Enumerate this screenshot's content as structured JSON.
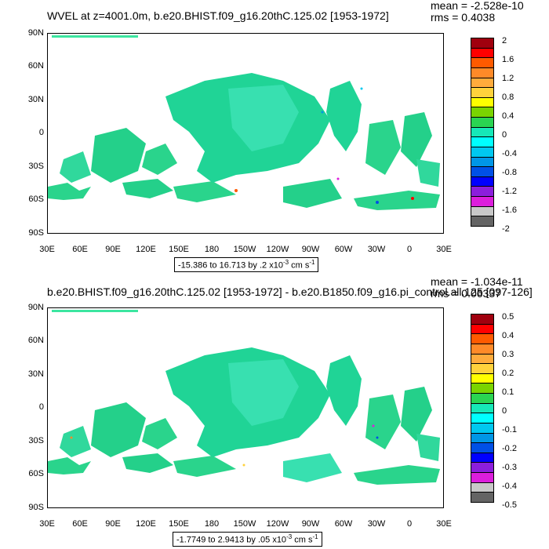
{
  "panels": [
    {
      "title": "WVEL at z=4001.0m, b.e20.BHIST.f09_g16.20thC.125.02 [1953-1972]",
      "mean": "mean = -2.528e-10",
      "rms": "rms = 0.4038",
      "range_prefix": "-15.386 to 16.713 by .2 x10",
      "range_exp": "-3",
      "range_unit": " cm s",
      "range_unit_exp": "-1",
      "colorbar_labels": [
        "2",
        "1.6",
        "1.2",
        "0.8",
        "0.4",
        "0",
        "-0.4",
        "-0.8",
        "-1.2",
        "-1.6",
        "-2"
      ]
    },
    {
      "title": "b.e20.BHIST.f09_g16.20thC.125.02 [1953-1972] - b.e20.B1850.f09_g16.pi_control.all.125 [097-126]",
      "mean": "mean = -1.034e-11",
      "rms": "rms = 0.06337",
      "range_prefix": "-1.7749 to 2.9413 by .05 x10",
      "range_exp": "-3",
      "range_unit": " cm s",
      "range_unit_exp": "-1",
      "colorbar_labels": [
        "0.5",
        "0.4",
        "0.3",
        "0.2",
        "0.1",
        "0",
        "-0.1",
        "-0.2",
        "-0.3",
        "-0.4",
        "-0.5"
      ]
    }
  ],
  "lat_labels": [
    "90N",
    "60N",
    "30N",
    "0",
    "30S",
    "60S",
    "90S"
  ],
  "lon_labels": [
    "30E",
    "60E",
    "90E",
    "120E",
    "150E",
    "180",
    "150W",
    "120W",
    "90W",
    "60W",
    "30W",
    "0",
    "30E"
  ],
  "colorbar_colors": [
    "#a0000e",
    "#ff0000",
    "#ff5a00",
    "#ff8a28",
    "#ffab3c",
    "#ffd23c",
    "#ffff00",
    "#7ad400",
    "#2ad452",
    "#16e8b8",
    "#00ffff",
    "#00c8f0",
    "#0096e6",
    "#0050e6",
    "#0000ff",
    "#8c1edc",
    "#dc1edc",
    "#c8c8c8",
    "#646464"
  ]
}
